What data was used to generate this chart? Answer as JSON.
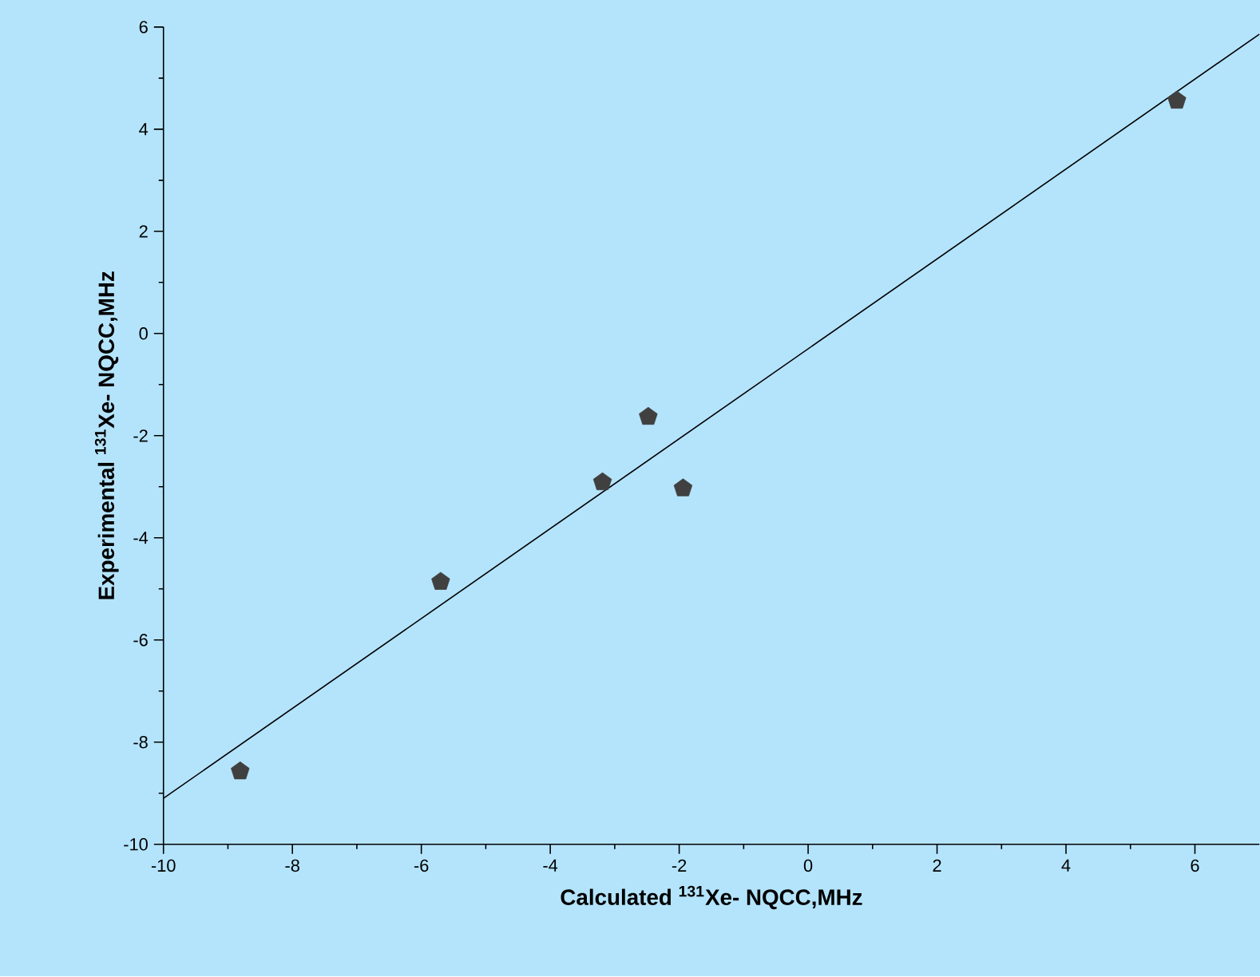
{
  "chart_data": {
    "type": "scatter",
    "xlabel": "**Calculated $^{131}$Xe- NQCC,MHz**",
    "ylabel": "**Experimental $^{131}$Xe- NQCC,MHz**",
    "xlim": [
      -10,
      7
    ],
    "ylim": [
      -10,
      6
    ],
    "xticks": [
      -10,
      -8,
      -6,
      -4,
      -2,
      0,
      2,
      4,
      6
    ],
    "yticks": [
      -10,
      -8,
      -6,
      -4,
      -2,
      0,
      2,
      4,
      6
    ],
    "grid": false,
    "series": [
      {
        "color": "#404040",
        "x": [
          -8.81,
          -5.7,
          -3.19,
          -2.48,
          -1.94,
          5.72
        ],
        "values": [
          -8.57,
          -4.86,
          -2.91,
          -1.63,
          -3.03,
          4.56
        ]
      },
      {
        "type": "line",
        "color": "#000000",
        "x": [
          -10,
          7
        ],
        "values": [
          -9.1,
          5.86
        ]
      }
    ]
  }
}
